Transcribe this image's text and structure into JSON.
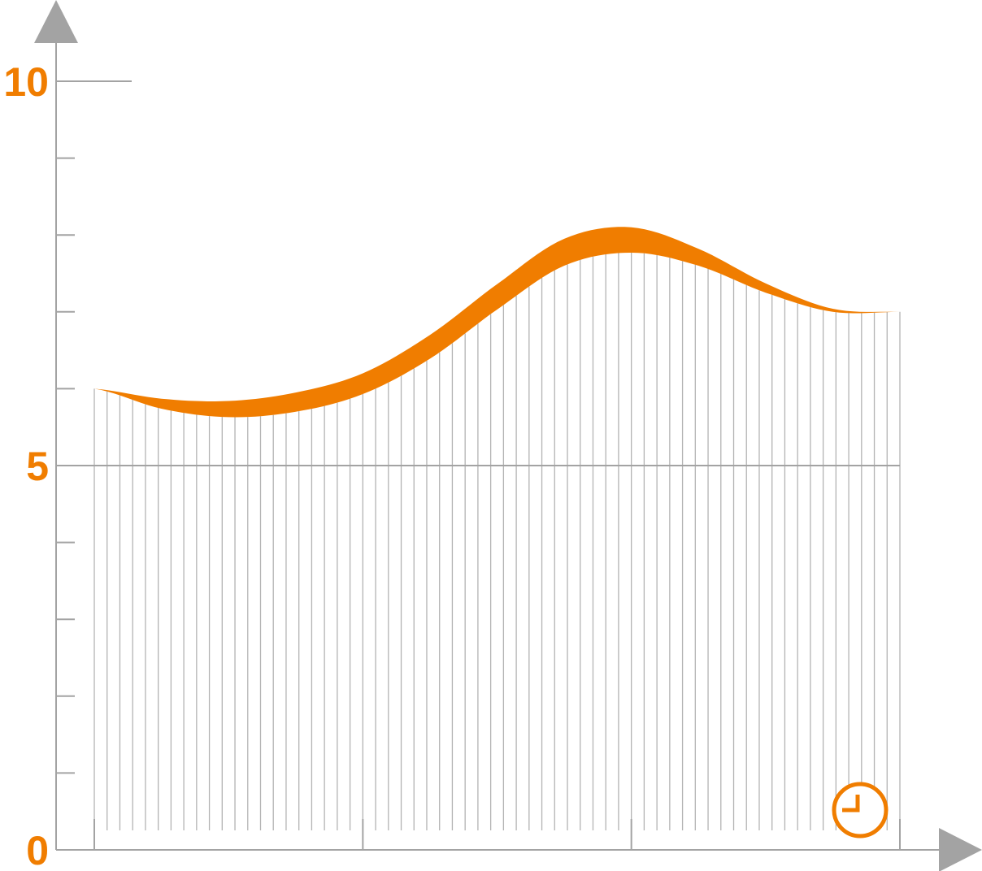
{
  "chart_data": {
    "type": "area",
    "title": "",
    "xlabel": "",
    "ylabel": "",
    "ylim": [
      0,
      10
    ],
    "xlim": [
      0,
      3
    ],
    "y_ticks": [
      {
        "value": 0,
        "label": "0"
      },
      {
        "value": 5,
        "label": "5"
      },
      {
        "value": 10,
        "label": "10"
      }
    ],
    "y_minor_step": 1,
    "x_major_ticks": [
      0,
      1,
      2,
      3
    ],
    "hatch_step": 0.0476,
    "series": [
      {
        "role": "upper-edge",
        "x": [
          0,
          0.25,
          0.5,
          0.75,
          1,
          1.25,
          1.5,
          1.75,
          2,
          2.25,
          2.5,
          2.75,
          3
        ],
        "y": [
          6.0,
          5.87,
          5.84,
          5.95,
          6.2,
          6.7,
          7.36,
          7.95,
          8.1,
          7.82,
          7.37,
          7.04,
          7.0
        ]
      },
      {
        "role": "lower-edge",
        "x": [
          0,
          0.25,
          0.5,
          0.75,
          1,
          1.25,
          1.5,
          1.75,
          2,
          2.25,
          2.5,
          2.75,
          3
        ],
        "y": [
          6.0,
          5.74,
          5.63,
          5.7,
          5.93,
          6.39,
          7.03,
          7.6,
          7.77,
          7.6,
          7.25,
          7.0,
          7.0
        ]
      }
    ],
    "colors": {
      "accent": "#f07d00",
      "axis": "#a3a3a3",
      "grid": "#b3b3b3",
      "label": "#f07d00"
    },
    "x_axis_icon": "clock-icon",
    "grid": true
  }
}
